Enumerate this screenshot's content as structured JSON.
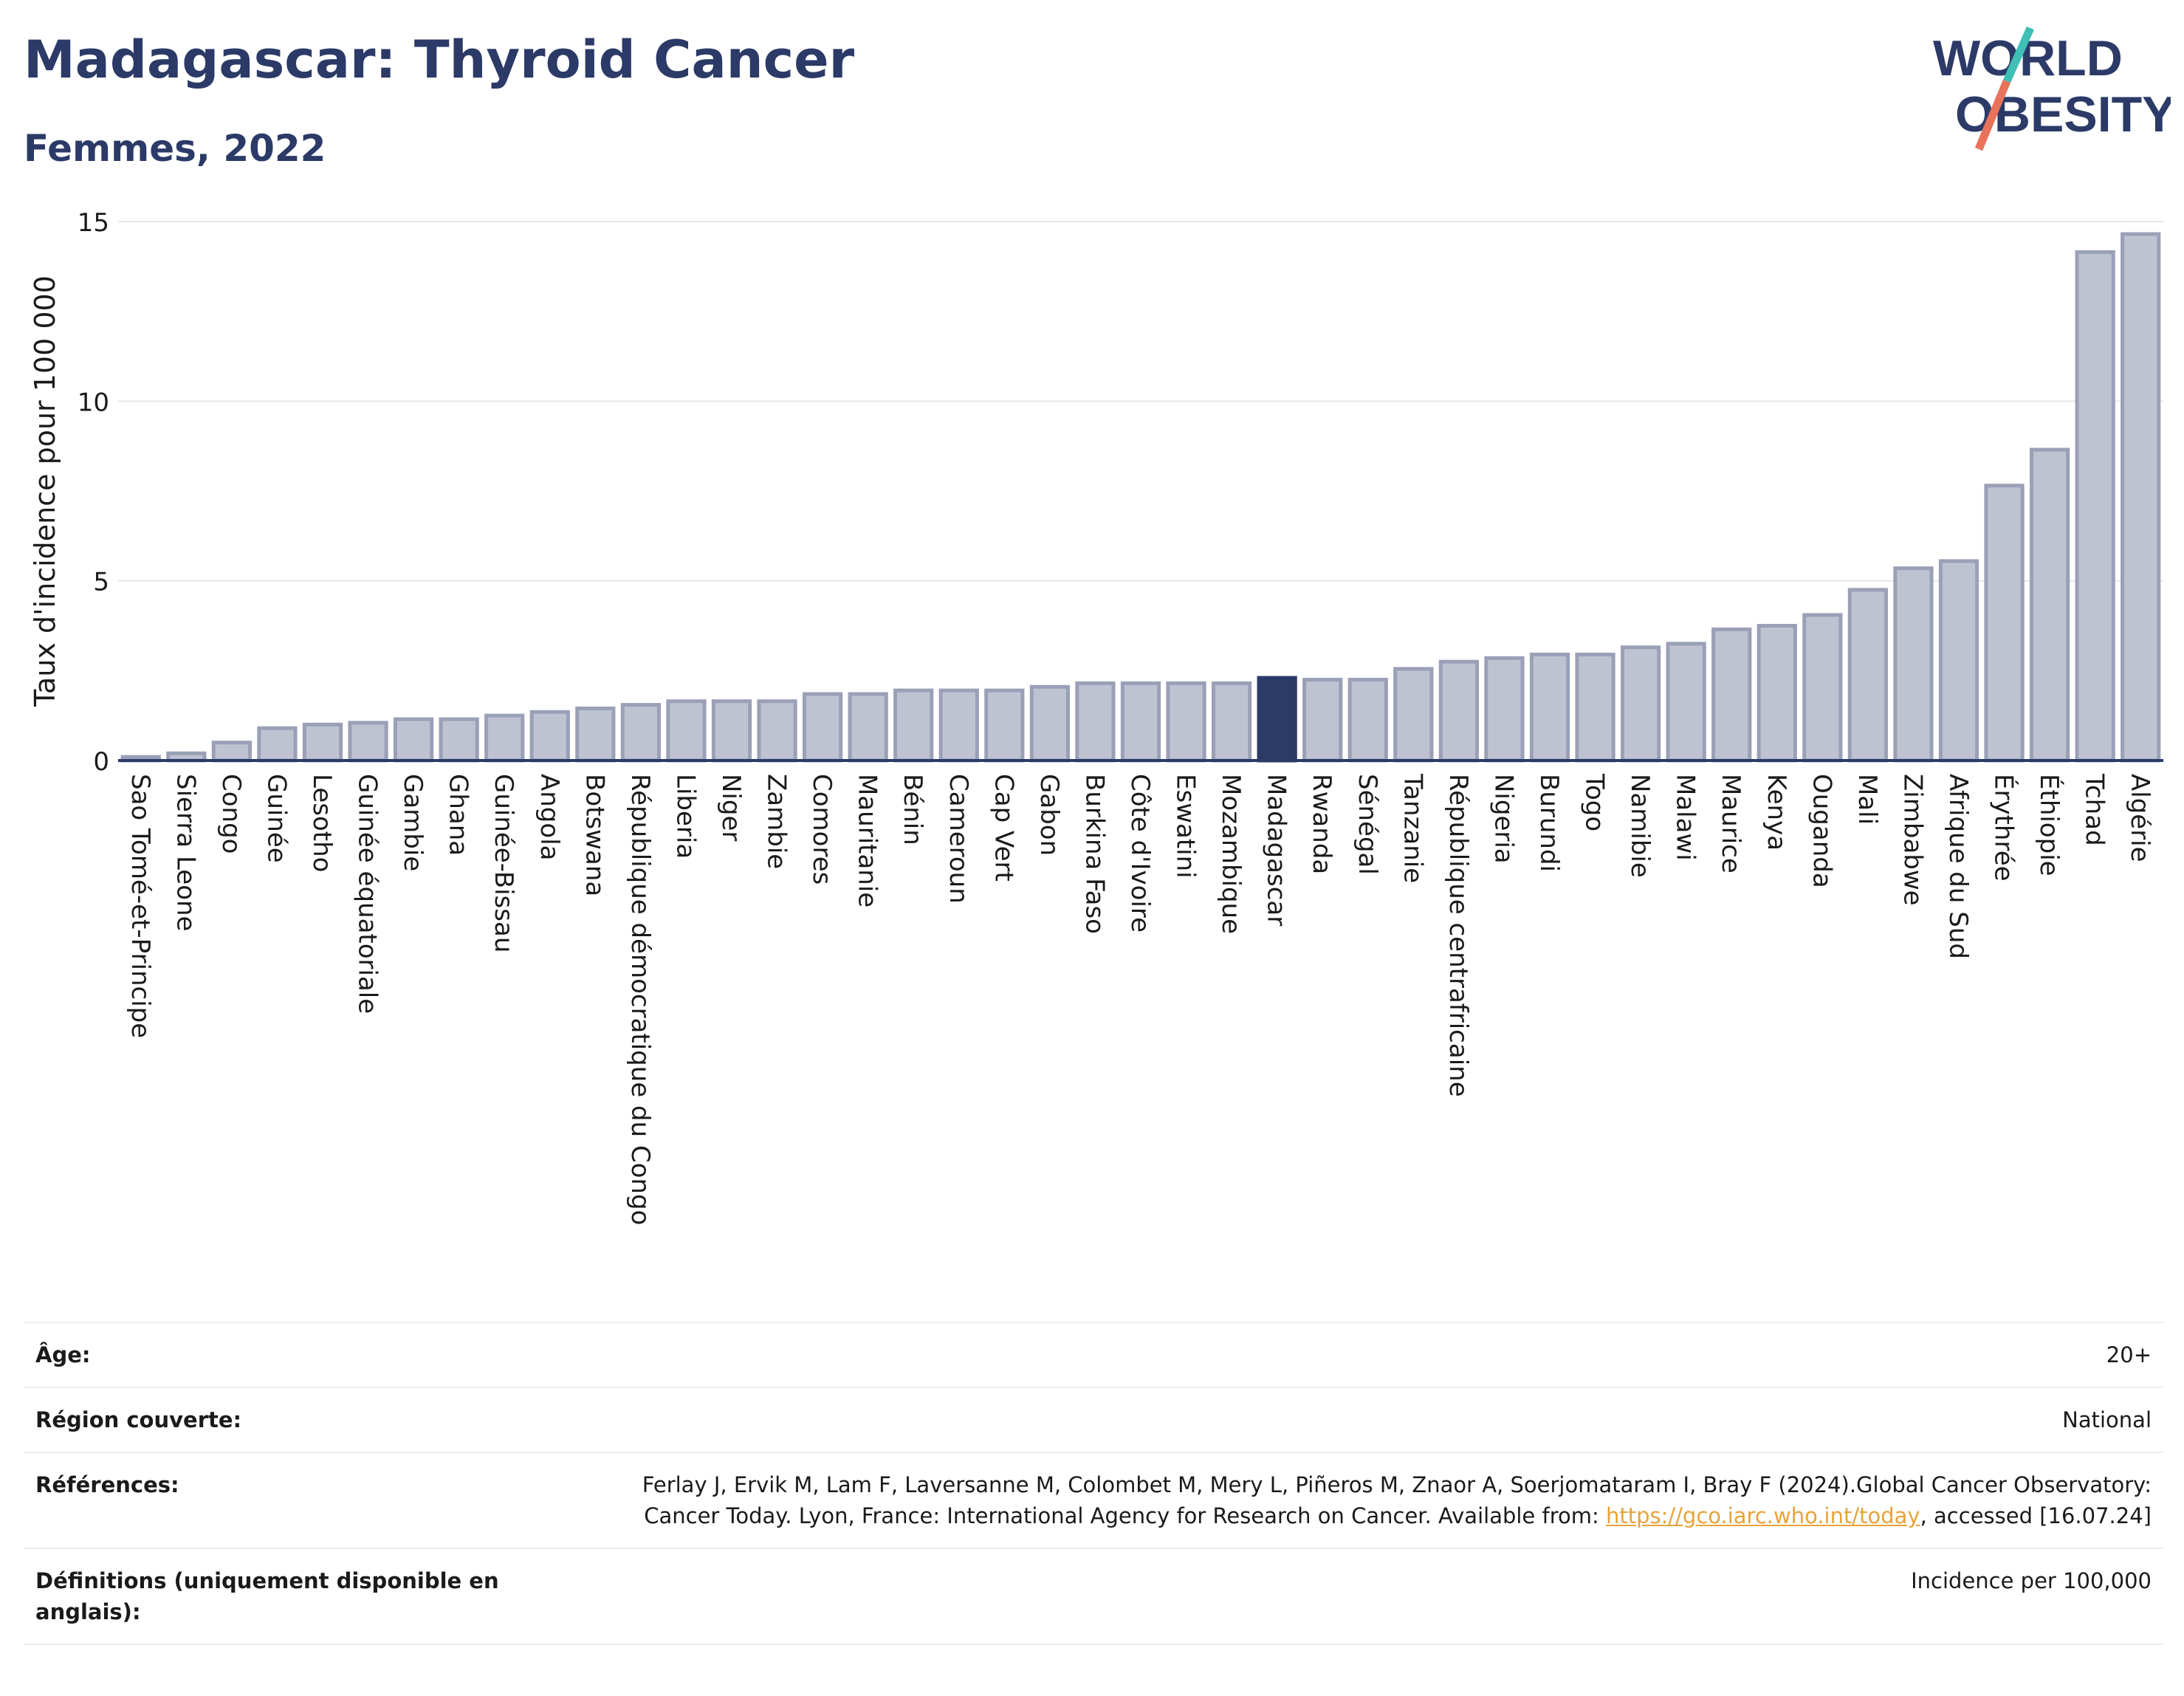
{
  "header": {
    "title": "Madagascar: Thyroid Cancer",
    "subtitle": "Femmes, 2022"
  },
  "logo": {
    "line1": "WORLD",
    "line2": "OBESITY",
    "colors": {
      "text": "#2b3a67",
      "slash_top": "#3fbfb5",
      "slash_bottom": "#e8735a"
    }
  },
  "chart_data": {
    "type": "bar",
    "title": "",
    "xlabel": "",
    "ylabel": "Taux d'incidence pour 100 000",
    "ylim": [
      0,
      15
    ],
    "yticks": [
      0,
      5,
      10,
      15
    ],
    "grid": true,
    "highlight": "Madagascar",
    "colors": {
      "bar": "#bfc3d1",
      "bar_edge": "#9aa0b7",
      "highlight": "#2b3a67",
      "grid": "#e6e6e6",
      "axis": "#2b3a67"
    },
    "categories": [
      "Sao Tomé-et-Principe",
      "Sierra Leone",
      "Congo",
      "Guinée",
      "Lesotho",
      "Guinée équatoriale",
      "Gambie",
      "Ghana",
      "Guinée-Bissau",
      "Angola",
      "Botswana",
      "République démocratique du Congo",
      "Liberia",
      "Niger",
      "Zambie",
      "Comores",
      "Mauritanie",
      "Bénin",
      "Cameroun",
      "Cap Vert",
      "Gabon",
      "Burkina Faso",
      "Côte d'Ivoire",
      "Eswatini",
      "Mozambique",
      "Madagascar",
      "Rwanda",
      "Sénégal",
      "Tanzanie",
      "République centrafricaine",
      "Nigeria",
      "Burundi",
      "Togo",
      "Namibie",
      "Malawi",
      "Maurice",
      "Kenya",
      "Ouganda",
      "Mali",
      "Zimbabwe",
      "Afrique du Sud",
      "Érythrée",
      "Éthiopie",
      "Tchad",
      "Algérie"
    ],
    "values": [
      0.1,
      0.2,
      0.5,
      0.9,
      1.0,
      1.05,
      1.15,
      1.15,
      1.25,
      1.35,
      1.45,
      1.55,
      1.65,
      1.65,
      1.65,
      1.85,
      1.85,
      1.95,
      1.95,
      1.95,
      2.05,
      2.15,
      2.15,
      2.15,
      2.15,
      2.3,
      2.25,
      2.25,
      2.55,
      2.75,
      2.85,
      2.95,
      2.95,
      3.15,
      3.25,
      3.65,
      3.75,
      4.05,
      4.75,
      5.35,
      5.55,
      7.65,
      8.65,
      14.15,
      14.65
    ]
  },
  "info": {
    "age_label": "Âge:",
    "age_value": "20+",
    "region_label": "Région couverte:",
    "region_value": "National",
    "refs_label": "Références:",
    "refs_text_1": "Ferlay J, Ervik M, Lam F, Laversanne M, Colombet M, Mery L, Piñeros M, Znaor A, Soerjomataram I, Bray F (2024).Global Cancer Observatory: Cancer Today. Lyon, France: International Agency for Research on Cancer. Available from: ",
    "refs_link": "https://gco.iarc.who.int/today",
    "refs_text_2": ", accessed [16.07.24]",
    "defs_label": "Définitions (uniquement disponible en anglais):",
    "defs_value": "Incidence per 100,000"
  }
}
